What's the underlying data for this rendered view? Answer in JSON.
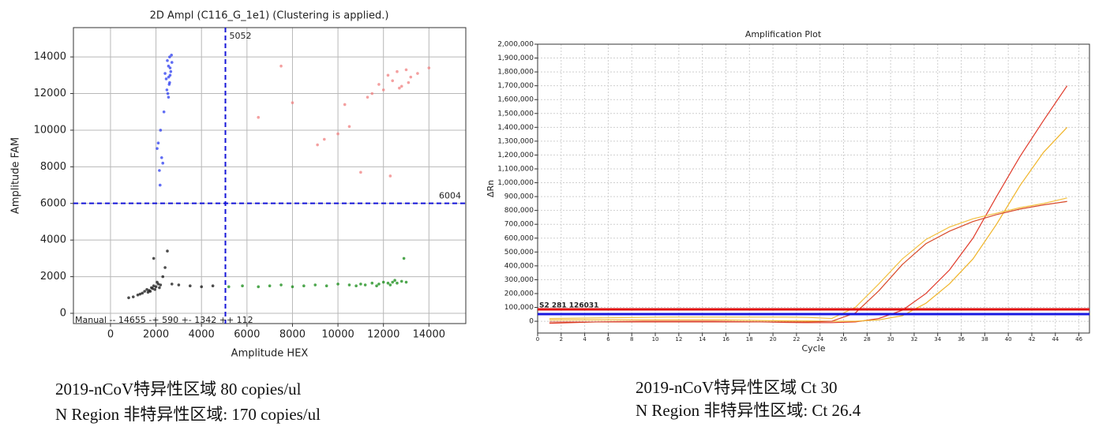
{
  "chart_data": [
    {
      "type": "scatter",
      "title": "2D Ampl (C116_G_1e1) (Clustering is applied.)",
      "x_label": "Amplitude HEX",
      "y_label": "Amplitude FAM",
      "xlim": [
        -1630,
        15620
      ],
      "ylim": [
        -560,
        15600
      ],
      "xticks": [
        0,
        2000,
        4000,
        6000,
        8000,
        10000,
        12000,
        14000
      ],
      "yticks": [
        0,
        2000,
        4000,
        6000,
        8000,
        10000,
        12000,
        14000
      ],
      "grid": true,
      "thresholds": [
        {
          "axis": "x",
          "value": 5052,
          "color": "#1515d8"
        },
        {
          "axis": "y",
          "value": 6004,
          "color": "#1515d8"
        }
      ],
      "annotation": "Manual -- 14655 -+ 590 +- 1342 ++ 112",
      "series": [
        {
          "color": "#2b3cf0",
          "x": [
            2500,
            2550,
            2600,
            2650,
            2450,
            2580,
            2620,
            2700,
            2480,
            2550,
            2600,
            2400,
            2680,
            2520,
            2350,
            2200,
            2100,
            2050,
            2250,
            2150,
            2180,
            2300,
            2620,
            2560
          ],
          "values": [
            13800,
            13500,
            14000,
            13200,
            12800,
            12500,
            13000,
            13700,
            12200,
            11800,
            12600,
            13100,
            14100,
            12000,
            11000,
            10000,
            9300,
            9000,
            8500,
            7800,
            7000,
            8200,
            13400,
            12900
          ]
        },
        {
          "color": "#f08080",
          "x": [
            6500,
            7500,
            8000,
            9100,
            9400,
            10000,
            10500,
            10300,
            11000,
            11500,
            11800,
            12000,
            12200,
            12400,
            12600,
            12800,
            13000,
            13200,
            12300,
            13500,
            14000,
            11300,
            12700,
            13100
          ],
          "values": [
            10700,
            13500,
            11500,
            9200,
            9500,
            9800,
            10200,
            11400,
            7700,
            12000,
            12500,
            12200,
            13000,
            12700,
            13200,
            12400,
            13300,
            12900,
            7500,
            13100,
            13400,
            11800,
            12300,
            12600
          ]
        },
        {
          "color": "#111111",
          "x": [
            800,
            1000,
            1200,
            1400,
            1500,
            1600,
            1700,
            1800,
            1900,
            2000,
            2100,
            2200,
            1650,
            1850,
            1950,
            2050,
            2150,
            2300,
            2400,
            1900,
            2500,
            2700,
            3000,
            3500,
            4000,
            4500,
            1300,
            1750
          ],
          "values": [
            850,
            900,
            1000,
            1100,
            1200,
            1300,
            1250,
            1400,
            1500,
            1450,
            1600,
            1550,
            1150,
            1350,
            1300,
            1700,
            1400,
            2000,
            2500,
            3000,
            3400,
            1600,
            1550,
            1500,
            1450,
            1500,
            1050,
            1200
          ]
        },
        {
          "color": "#138a13",
          "x": [
            5200,
            5800,
            6500,
            7000,
            7500,
            8000,
            8500,
            9000,
            9500,
            10000,
            10500,
            11000,
            11200,
            11500,
            11800,
            12000,
            12200,
            12400,
            12600,
            12800,
            13000,
            11700,
            12300,
            12500,
            12900,
            10800
          ],
          "values": [
            1450,
            1500,
            1450,
            1500,
            1550,
            1450,
            1500,
            1550,
            1500,
            1600,
            1550,
            1600,
            1550,
            1650,
            1600,
            1700,
            1650,
            1700,
            1650,
            1750,
            1700,
            1500,
            1550,
            1800,
            3000,
            1500
          ]
        }
      ]
    },
    {
      "type": "line",
      "title": "Amplification Plot",
      "x_label": "Cycle",
      "y_label": "ΔRn",
      "xlim": [
        0,
        46.9
      ],
      "ylim": [
        -85000,
        2000000
      ],
      "xticks": [
        0,
        2,
        4,
        6,
        8,
        10,
        12,
        14,
        16,
        18,
        20,
        22,
        24,
        26,
        28,
        30,
        32,
        34,
        36,
        38,
        40,
        42,
        44,
        46
      ],
      "yticks": [
        {
          "value": 0,
          "label": "0"
        },
        {
          "value": 100000,
          "label": "100,000"
        },
        {
          "value": 200000,
          "label": "200,000"
        },
        {
          "value": 300000,
          "label": "300,000"
        },
        {
          "value": 400000,
          "label": "400,000"
        },
        {
          "value": 500000,
          "label": "500,000"
        },
        {
          "value": 600000,
          "label": "600,000"
        },
        {
          "value": 700000,
          "label": "700,000"
        },
        {
          "value": 800000,
          "label": "800,000"
        },
        {
          "value": 900000,
          "label": "900,000"
        },
        {
          "value": 1000000,
          "label": "1,000,000"
        },
        {
          "value": 1100000,
          "label": "1,100,000"
        },
        {
          "value": 1200000,
          "label": "1,200,000"
        },
        {
          "value": 1300000,
          "label": "1,300,000"
        },
        {
          "value": 1400000,
          "label": "1,400,000"
        },
        {
          "value": 1500000,
          "label": "1,500,000"
        },
        {
          "value": 1600000,
          "label": "1,600,000"
        },
        {
          "value": 1700000,
          "label": "1,700,000"
        },
        {
          "value": 1800000,
          "label": "1,800,000"
        },
        {
          "value": 1900000,
          "label": "1,900,000"
        },
        {
          "value": 2000000,
          "label": "2,000,000"
        }
      ],
      "grid": true,
      "thresholds": [
        {
          "axis": "y",
          "value": 86000,
          "color": "#e01010",
          "label": "S2 281 126031"
        },
        {
          "axis": "y",
          "value": 52000,
          "color": "#1818e0"
        }
      ],
      "x": [
        1,
        3,
        5,
        7,
        9,
        11,
        13,
        15,
        17,
        19,
        21,
        23,
        25,
        27,
        29,
        31,
        33,
        35,
        37,
        39,
        41,
        43,
        45
      ],
      "series": [
        {
          "color": "#e03a2a",
          "values": [
            -15000,
            -10000,
            -5000,
            -2000,
            0,
            0,
            0,
            0,
            -3000,
            -5000,
            -8000,
            -10000,
            -10000,
            -5000,
            20000,
            80000,
            200000,
            370000,
            600000,
            900000,
            1190000,
            1450000,
            1700000
          ]
        },
        {
          "color": "#f0b428",
          "values": [
            10000,
            10000,
            10000,
            10000,
            10000,
            10000,
            10000,
            10000,
            8000,
            5000,
            3000,
            2000,
            0,
            0,
            10000,
            40000,
            130000,
            270000,
            450000,
            700000,
            980000,
            1220000,
            1400000
          ]
        },
        {
          "color": "#d84a2a",
          "values": [
            -5000,
            -5000,
            -5000,
            -5000,
            -5000,
            -5000,
            -5000,
            -5000,
            -5000,
            -5000,
            -5000,
            -5000,
            0,
            60000,
            220000,
            410000,
            560000,
            650000,
            720000,
            770000,
            810000,
            840000,
            865000
          ]
        },
        {
          "color": "#f3c040",
          "values": [
            20000,
            22000,
            24000,
            26000,
            28000,
            30000,
            30000,
            30000,
            30000,
            30000,
            30000,
            28000,
            20000,
            100000,
            270000,
            450000,
            590000,
            680000,
            740000,
            780000,
            820000,
            850000,
            890000
          ]
        }
      ]
    }
  ],
  "captions": [
    [
      "2019-nCoV特异性区域  80 copies/ul",
      "N Region 非特异性区域: 170 copies/ul"
    ],
    [
      "2019-nCoV特异性区域  Ct 30",
      "N Region 非特异性区域: Ct 26.4"
    ]
  ]
}
